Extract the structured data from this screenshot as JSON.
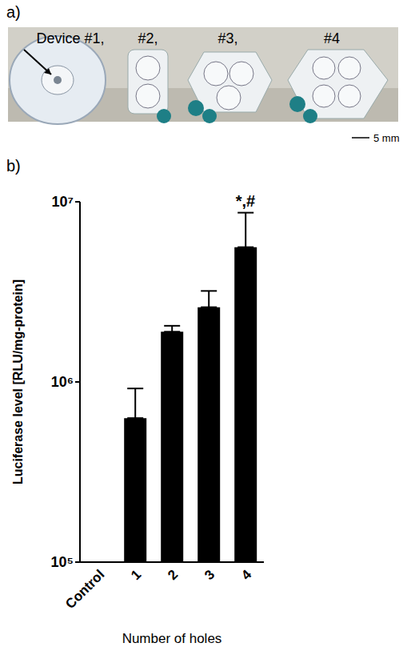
{
  "panel_a": {
    "panel_label": "a)",
    "device_labels": [
      "Device #1,",
      "#2,",
      "#3,",
      "#4"
    ],
    "scale_bar": "5 mm"
  },
  "chart_data": {
    "type": "bar",
    "panel_label": "b)",
    "x_label": "Number of holes",
    "y_label": "Luciferase level [RLU/mg-protein]",
    "categories": [
      "Control",
      "1",
      "2",
      "3",
      "4"
    ],
    "values": [
      100000,
      630000,
      1900000,
      2600000,
      5600000
    ],
    "errors": [
      0,
      290000,
      150000,
      600000,
      3100000
    ],
    "color": "#000000",
    "log": "y",
    "grid": false,
    "ylim": [
      100000,
      10000000
    ],
    "yticks": [
      {
        "value": 100000,
        "label": "10⁵"
      },
      {
        "value": 1000000,
        "label": "10⁶"
      },
      {
        "value": 10000000,
        "label": "10⁷"
      }
    ],
    "annotations": [
      {
        "text": "*,#",
        "category": "4"
      }
    ]
  }
}
